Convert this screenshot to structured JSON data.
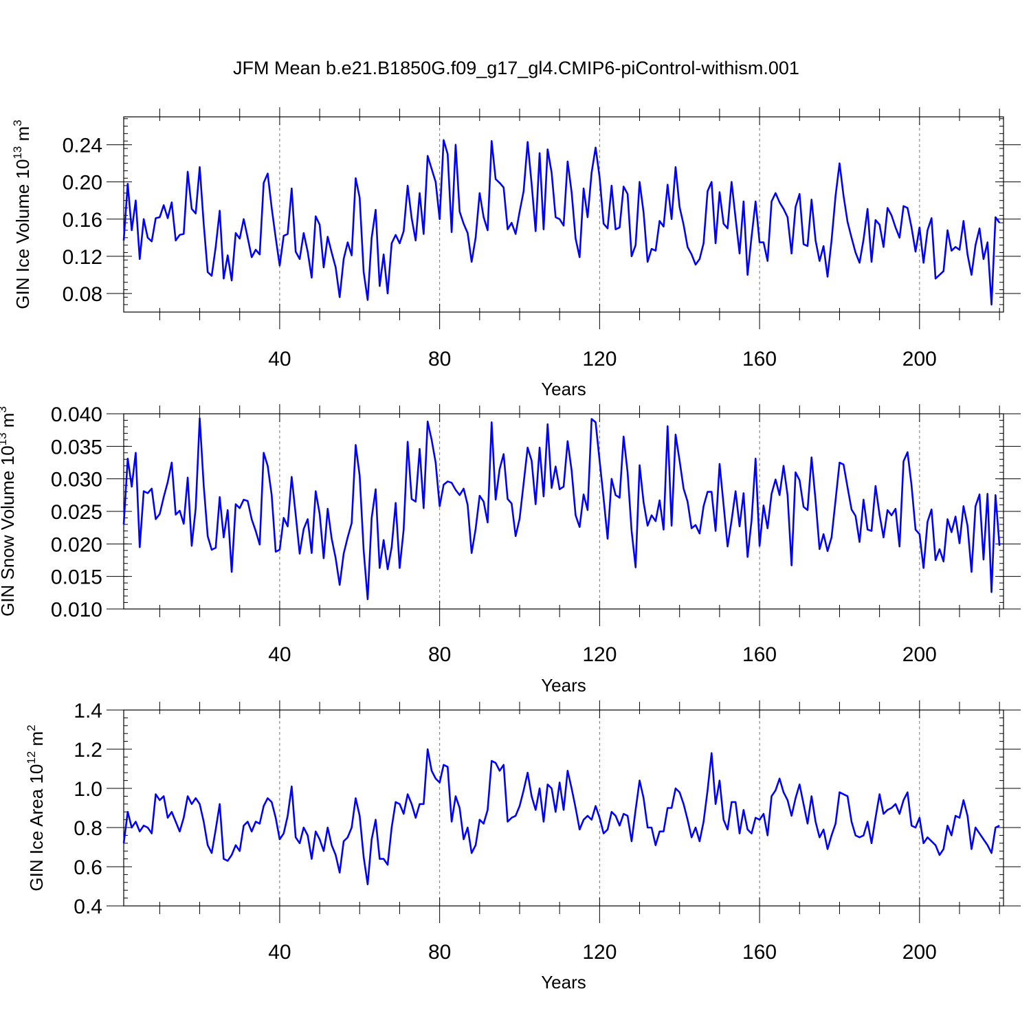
{
  "figure": {
    "title": "JFM Mean b.e21.B1850G.f09_g17_gl4.CMIP6-piControl-withism.001",
    "line_color": "#0000ff",
    "grid_color": "#777777"
  },
  "chart_data": [
    {
      "type": "line",
      "xlabel": "Years",
      "ylabel": "GIN Ice Volume 10",
      "ylabel_exp": "13",
      "ylabel_unit": " m",
      "ylabel_unit_exp": "3",
      "xlim": [
        1,
        221
      ],
      "ylim": [
        0.06,
        0.27
      ],
      "xticks": [
        "40",
        "80",
        "120",
        "160",
        "200"
      ],
      "xtick_values": [
        40,
        80,
        120,
        160,
        200
      ],
      "yticks": [
        "0.08",
        "0.12",
        "0.16",
        "0.20",
        "0.24"
      ],
      "ytick_values": [
        0.08,
        0.12,
        0.16,
        0.2,
        0.24
      ],
      "grid_x": [
        40,
        80,
        120,
        160,
        200
      ],
      "y": [
        0.137,
        0.198,
        0.148,
        0.18,
        0.117,
        0.16,
        0.14,
        0.136,
        0.161,
        0.162,
        0.175,
        0.161,
        0.178,
        0.137,
        0.143,
        0.144,
        0.211,
        0.171,
        0.166,
        0.216,
        0.155,
        0.103,
        0.099,
        0.13,
        0.169,
        0.096,
        0.121,
        0.094,
        0.145,
        0.139,
        0.16,
        0.14,
        0.119,
        0.127,
        0.122,
        0.199,
        0.209,
        0.172,
        0.14,
        0.11,
        0.142,
        0.144,
        0.193,
        0.125,
        0.117,
        0.145,
        0.125,
        0.097,
        0.163,
        0.154,
        0.108,
        0.141,
        0.124,
        0.108,
        0.076,
        0.117,
        0.135,
        0.121,
        0.204,
        0.183,
        0.103,
        0.073,
        0.14,
        0.17,
        0.088,
        0.122,
        0.08,
        0.134,
        0.143,
        0.134,
        0.147,
        0.196,
        0.161,
        0.137,
        0.188,
        0.144,
        0.228,
        0.214,
        0.2,
        0.16,
        0.245,
        0.23,
        0.146,
        0.24,
        0.168,
        0.155,
        0.145,
        0.114,
        0.14,
        0.188,
        0.162,
        0.148,
        0.244,
        0.203,
        0.199,
        0.194,
        0.149,
        0.156,
        0.144,
        0.168,
        0.19,
        0.243,
        0.198,
        0.147,
        0.231,
        0.149,
        0.235,
        0.21,
        0.162,
        0.16,
        0.153,
        0.222,
        0.189,
        0.139,
        0.119,
        0.193,
        0.162,
        0.21,
        0.237,
        0.205,
        0.155,
        0.15,
        0.196,
        0.149,
        0.151,
        0.195,
        0.187,
        0.12,
        0.132,
        0.2,
        0.167,
        0.114,
        0.128,
        0.126,
        0.158,
        0.152,
        0.197,
        0.16,
        0.216,
        0.173,
        0.154,
        0.13,
        0.122,
        0.111,
        0.117,
        0.134,
        0.19,
        0.2,
        0.134,
        0.189,
        0.155,
        0.15,
        0.2,
        0.161,
        0.123,
        0.179,
        0.1,
        0.141,
        0.179,
        0.135,
        0.135,
        0.115,
        0.179,
        0.188,
        0.178,
        0.171,
        0.162,
        0.123,
        0.173,
        0.187,
        0.133,
        0.131,
        0.181,
        0.137,
        0.115,
        0.131,
        0.098,
        0.137,
        0.185,
        0.22,
        0.185,
        0.157,
        0.14,
        0.124,
        0.113,
        0.138,
        0.171,
        0.114,
        0.159,
        0.154,
        0.13,
        0.172,
        0.164,
        0.151,
        0.14,
        0.174,
        0.172,
        0.151,
        0.125,
        0.151,
        0.113,
        0.148,
        0.161,
        0.096,
        0.1,
        0.104,
        0.148,
        0.126,
        0.13,
        0.127,
        0.158,
        0.122,
        0.1,
        0.132,
        0.15,
        0.117,
        0.135,
        0.068,
        0.162,
        0.156
      ]
    },
    {
      "type": "line",
      "xlabel": "Years",
      "ylabel": "GIN Snow Volume 10",
      "ylabel_exp": "13",
      "ylabel_unit": " m",
      "ylabel_unit_exp": "3",
      "xlim": [
        1,
        221
      ],
      "ylim": [
        0.01,
        0.04
      ],
      "xticks": [
        "40",
        "80",
        "120",
        "160",
        "200"
      ],
      "xtick_values": [
        40,
        80,
        120,
        160,
        200
      ],
      "yticks": [
        "0.010",
        "0.015",
        "0.020",
        "0.025",
        "0.030",
        "0.035",
        "0.040"
      ],
      "ytick_values": [
        0.01,
        0.015,
        0.02,
        0.025,
        0.03,
        0.035,
        0.04
      ],
      "grid_x": [
        40,
        80,
        120,
        160,
        200
      ],
      "y": [
        0.023,
        0.0331,
        0.0288,
        0.034,
        0.0195,
        0.0281,
        0.0278,
        0.0285,
        0.0238,
        0.0246,
        0.0272,
        0.0295,
        0.0325,
        0.0245,
        0.0251,
        0.0231,
        0.0302,
        0.0197,
        0.0255,
        0.0393,
        0.029,
        0.0212,
        0.0191,
        0.0194,
        0.0272,
        0.021,
        0.0252,
        0.0157,
        0.0261,
        0.0255,
        0.0268,
        0.0266,
        0.0238,
        0.022,
        0.0199,
        0.034,
        0.032,
        0.0275,
        0.0188,
        0.0191,
        0.024,
        0.0227,
        0.0303,
        0.0245,
        0.0185,
        0.0223,
        0.0238,
        0.0186,
        0.0281,
        0.0246,
        0.0178,
        0.0254,
        0.0208,
        0.0178,
        0.0137,
        0.0185,
        0.021,
        0.0232,
        0.0352,
        0.0305,
        0.019,
        0.0115,
        0.024,
        0.0284,
        0.0163,
        0.0206,
        0.0161,
        0.0195,
        0.0263,
        0.0163,
        0.0222,
        0.0357,
        0.0269,
        0.0265,
        0.0346,
        0.0255,
        0.0388,
        0.036,
        0.0325,
        0.0258,
        0.0291,
        0.0296,
        0.0294,
        0.0283,
        0.0275,
        0.0285,
        0.026,
        0.0186,
        0.0223,
        0.0274,
        0.0265,
        0.0233,
        0.0387,
        0.0268,
        0.0315,
        0.0338,
        0.0269,
        0.0262,
        0.0212,
        0.0239,
        0.0293,
        0.0348,
        0.0328,
        0.0261,
        0.0348,
        0.0273,
        0.0384,
        0.0286,
        0.0319,
        0.0284,
        0.0288,
        0.0358,
        0.0313,
        0.0244,
        0.0226,
        0.0276,
        0.0252,
        0.0392,
        0.0387,
        0.0328,
        0.027,
        0.0208,
        0.03,
        0.0275,
        0.0271,
        0.0365,
        0.031,
        0.022,
        0.0164,
        0.0321,
        0.0264,
        0.0228,
        0.0244,
        0.0235,
        0.0267,
        0.0222,
        0.0381,
        0.0228,
        0.0368,
        0.0328,
        0.0285,
        0.0265,
        0.0224,
        0.0229,
        0.0216,
        0.0258,
        0.028,
        0.028,
        0.022,
        0.0323,
        0.026,
        0.0196,
        0.0236,
        0.0281,
        0.0227,
        0.0278,
        0.018,
        0.0236,
        0.0331,
        0.0197,
        0.0259,
        0.0224,
        0.0277,
        0.0299,
        0.0275,
        0.032,
        0.0275,
        0.0167,
        0.031,
        0.0298,
        0.0257,
        0.0252,
        0.0333,
        0.0267,
        0.0192,
        0.0215,
        0.0189,
        0.021,
        0.0267,
        0.0325,
        0.0322,
        0.0287,
        0.0253,
        0.0243,
        0.0203,
        0.0268,
        0.0222,
        0.022,
        0.0289,
        0.0245,
        0.021,
        0.0252,
        0.0244,
        0.0254,
        0.0196,
        0.0327,
        0.0341,
        0.029,
        0.0222,
        0.0215,
        0.0163,
        0.0234,
        0.0253,
        0.0175,
        0.0192,
        0.0173,
        0.0238,
        0.0218,
        0.0242,
        0.0201,
        0.0258,
        0.0228,
        0.0157,
        0.0258,
        0.0276,
        0.0176,
        0.0277,
        0.0126,
        0.0275,
        0.0197
      ]
    },
    {
      "type": "line",
      "xlabel": "Years",
      "ylabel": "GIN Ice Area 10",
      "ylabel_exp": "12",
      "ylabel_unit": " m",
      "ylabel_unit_exp": "2",
      "xlim": [
        1,
        221
      ],
      "ylim": [
        0.4,
        1.4
      ],
      "xticks": [
        "40",
        "80",
        "120",
        "160",
        "200"
      ],
      "xtick_values": [
        40,
        80,
        120,
        160,
        200
      ],
      "yticks": [
        "0.4",
        "0.6",
        "0.8",
        "1.0",
        "1.2",
        "1.4"
      ],
      "ytick_values": [
        0.4,
        0.6,
        0.8,
        1.0,
        1.2,
        1.4
      ],
      "grid_x": [
        40,
        80,
        120,
        160,
        200
      ],
      "y": [
        0.72,
        0.88,
        0.8,
        0.83,
        0.78,
        0.81,
        0.8,
        0.77,
        0.97,
        0.94,
        0.96,
        0.85,
        0.88,
        0.83,
        0.78,
        0.85,
        0.96,
        0.92,
        0.95,
        0.92,
        0.83,
        0.71,
        0.67,
        0.79,
        0.92,
        0.64,
        0.63,
        0.66,
        0.71,
        0.68,
        0.81,
        0.83,
        0.78,
        0.83,
        0.82,
        0.91,
        0.95,
        0.93,
        0.85,
        0.74,
        0.77,
        0.86,
        1.01,
        0.75,
        0.72,
        0.8,
        0.76,
        0.64,
        0.78,
        0.74,
        0.68,
        0.8,
        0.71,
        0.66,
        0.57,
        0.73,
        0.75,
        0.8,
        0.95,
        0.86,
        0.65,
        0.51,
        0.74,
        0.84,
        0.64,
        0.64,
        0.61,
        0.8,
        0.93,
        0.92,
        0.87,
        0.97,
        0.92,
        0.85,
        0.92,
        0.92,
        1.2,
        1.09,
        1.05,
        1.03,
        1.12,
        1.11,
        0.83,
        0.96,
        0.9,
        0.74,
        0.8,
        0.67,
        0.71,
        0.84,
        0.82,
        0.89,
        1.14,
        1.13,
        1.09,
        1.12,
        0.83,
        0.85,
        0.86,
        0.91,
        0.99,
        1.08,
        0.96,
        0.89,
        1.0,
        0.83,
        1.02,
        1.0,
        0.88,
        1.03,
        0.89,
        1.09,
        1.0,
        0.9,
        0.79,
        0.84,
        0.86,
        0.84,
        0.91,
        0.85,
        0.77,
        0.79,
        0.88,
        0.86,
        0.81,
        0.87,
        0.86,
        0.73,
        0.89,
        1.04,
        0.95,
        0.8,
        0.8,
        0.71,
        0.78,
        0.78,
        0.9,
        0.9,
        1.0,
        0.98,
        0.92,
        0.84,
        0.75,
        0.8,
        0.73,
        0.83,
        0.99,
        1.18,
        0.92,
        1.04,
        0.84,
        0.79,
        0.93,
        0.93,
        0.77,
        0.89,
        0.79,
        0.77,
        0.85,
        0.84,
        0.87,
        0.76,
        0.96,
        0.99,
        1.05,
        0.98,
        0.94,
        0.86,
        0.95,
        1.02,
        0.92,
        0.82,
        0.96,
        0.83,
        0.75,
        0.79,
        0.69,
        0.76,
        0.82,
        0.98,
        0.97,
        0.96,
        0.83,
        0.76,
        0.75,
        0.76,
        0.83,
        0.72,
        0.85,
        0.97,
        0.87,
        0.89,
        0.9,
        0.92,
        0.87,
        0.94,
        0.98,
        0.81,
        0.8,
        0.85,
        0.72,
        0.75,
        0.73,
        0.71,
        0.66,
        0.69,
        0.81,
        0.76,
        0.86,
        0.85,
        0.94,
        0.86,
        0.69,
        0.8,
        0.77,
        0.74,
        0.71,
        0.67,
        0.8,
        0.81
      ]
    }
  ]
}
